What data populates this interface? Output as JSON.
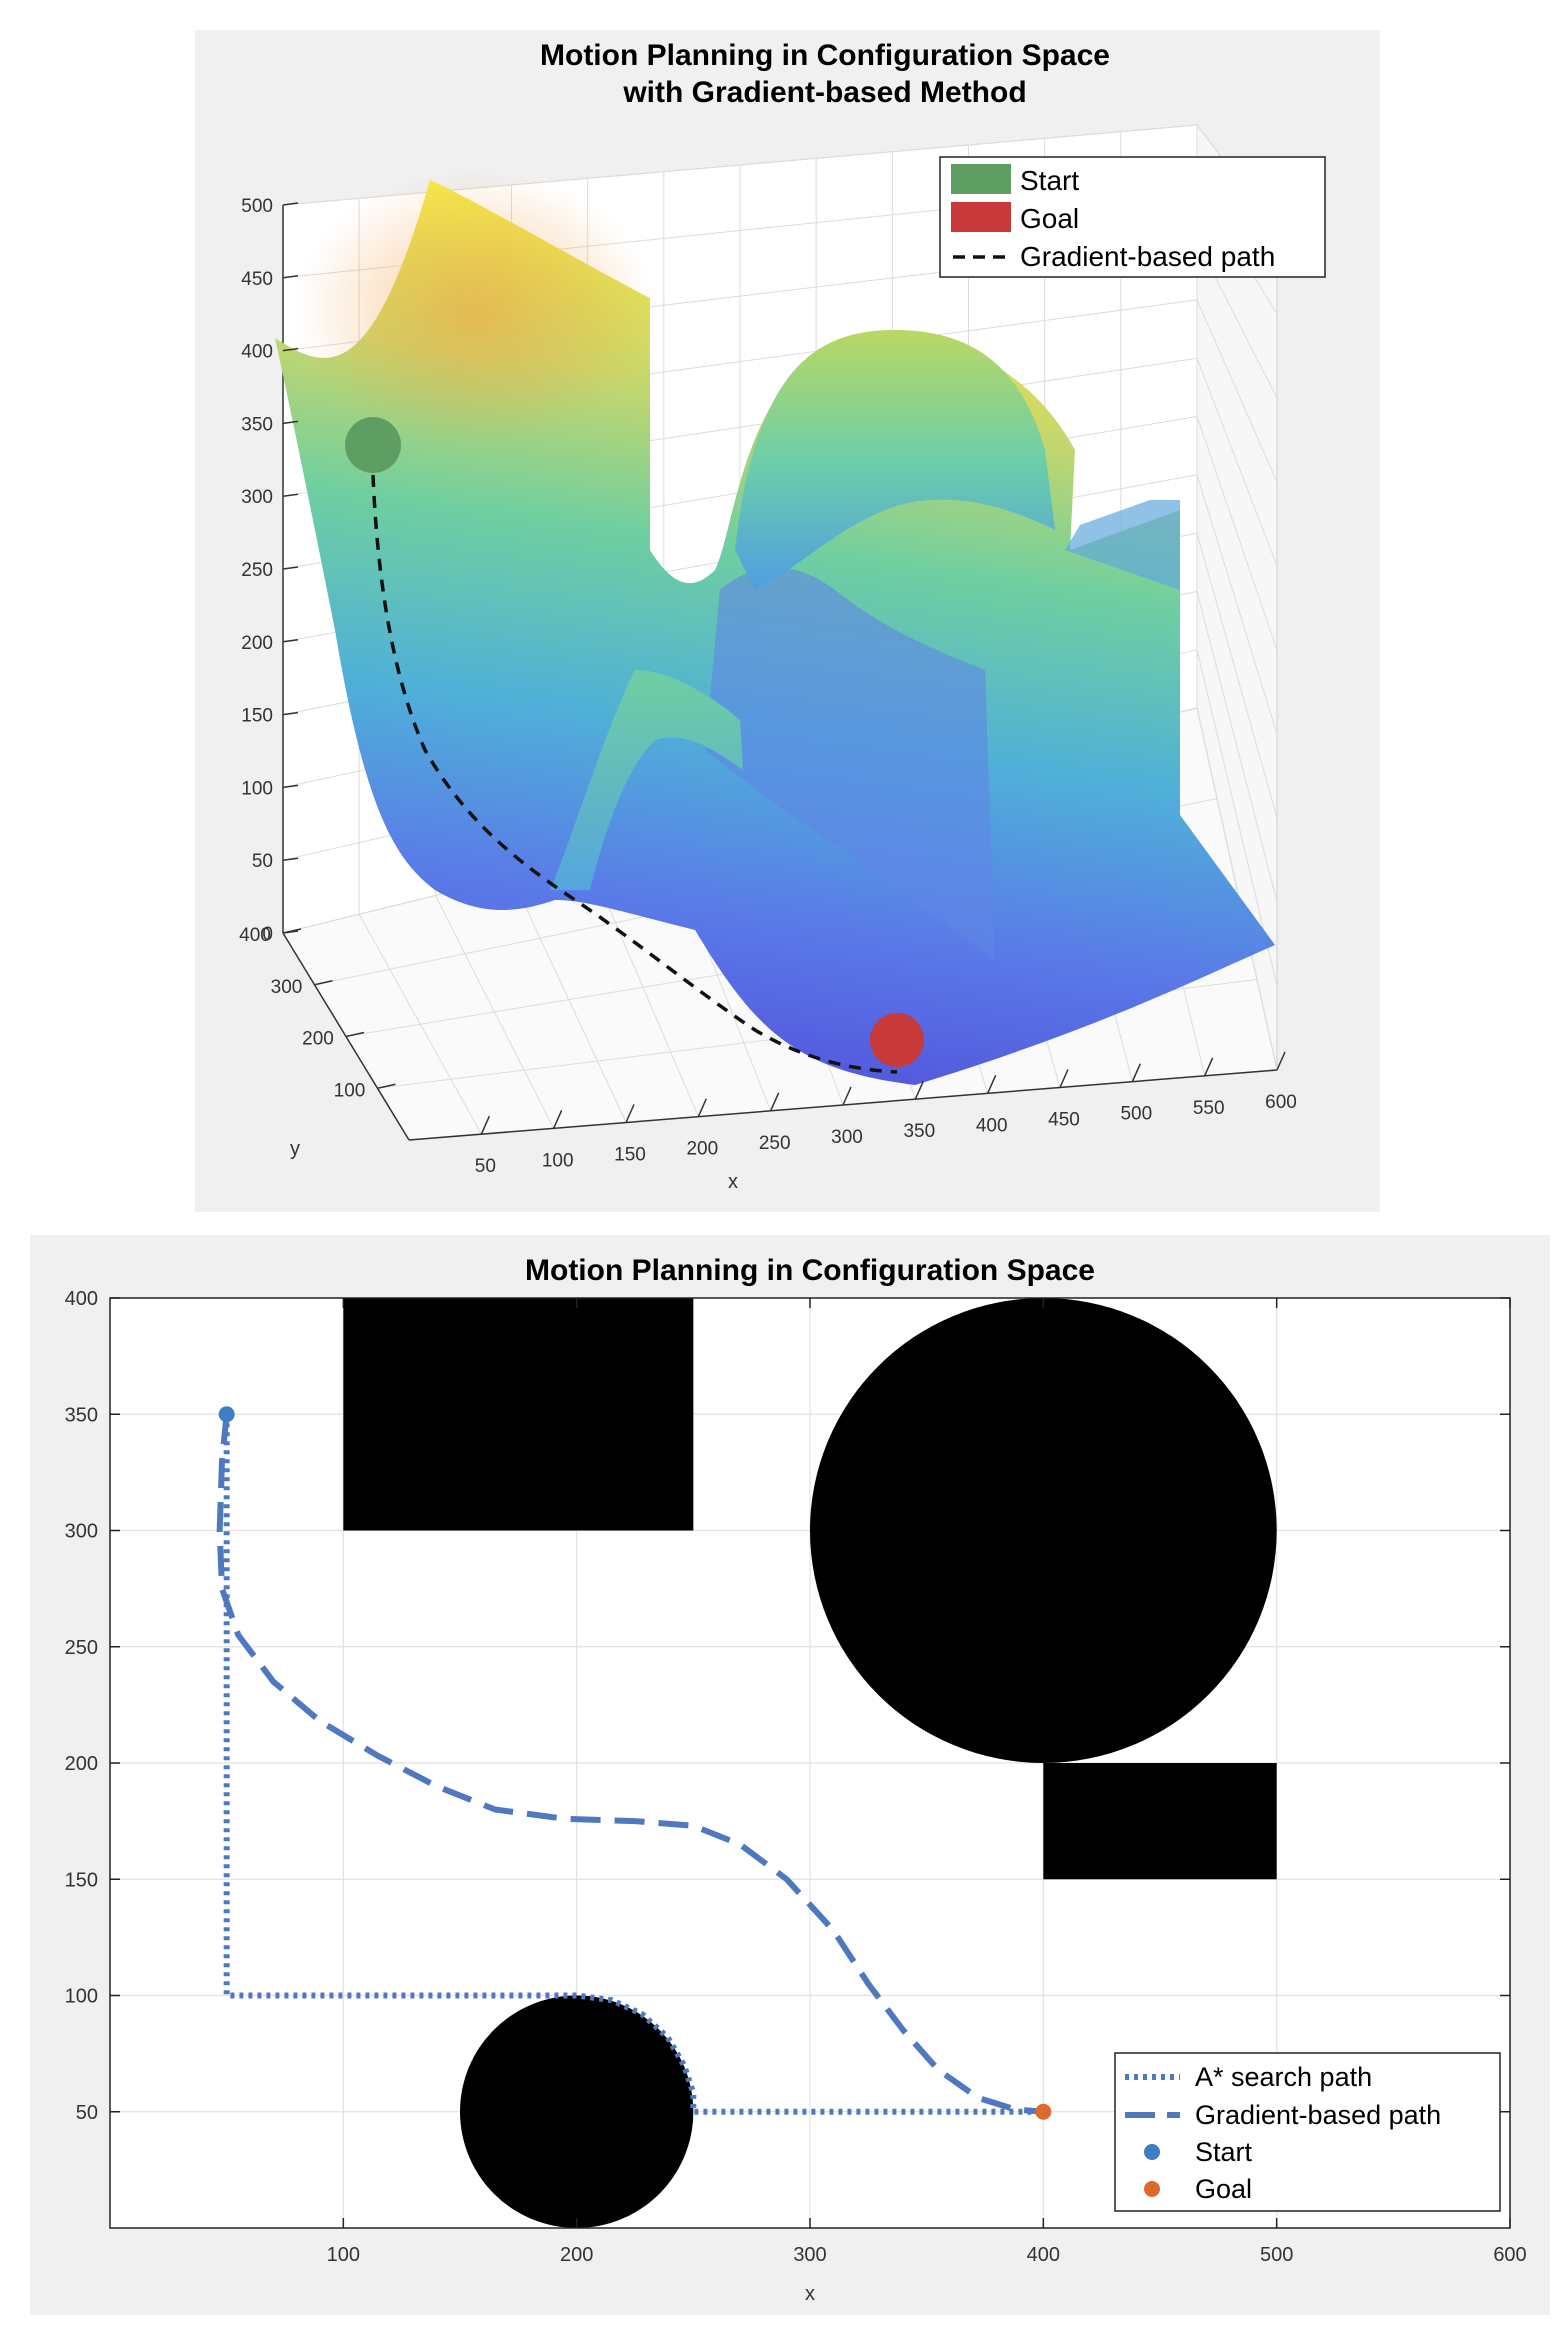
{
  "charts": [
    {
      "title_line1": "Motion Planning in Configuration Space",
      "title_line2": "with Gradient-based Method",
      "xlabel": "x",
      "ylabel": "y",
      "legend": {
        "start": "Start",
        "goal": "Goal",
        "path": "Gradient-based path"
      }
    },
    {
      "title": "Motion Planning in Configuration Space",
      "xlabel": "x",
      "ylabel": "y",
      "legend": {
        "astar": "A* search path",
        "gradient": "Gradient-based path",
        "start": "Start",
        "goal": "Goal"
      }
    }
  ],
  "colors": {
    "start_3d": "#5f9e62",
    "goal_3d": "#c8393a",
    "path_2d": "#4f78c0",
    "start_2d": "#3d7ec4",
    "goal_2d": "#dc6a2a",
    "obstacle": "#000000",
    "surface_high": "#f3e84a",
    "surface_mid": "#6fcfa0",
    "surface_low": "#5a55e0"
  },
  "chart_data": [
    {
      "type": "surface",
      "title": "Motion Planning in Configuration Space with Gradient-based Method",
      "xlabel": "x",
      "ylabel": "y",
      "zlabel": "",
      "xlim": [
        0,
        600
      ],
      "ylim": [
        0,
        400
      ],
      "zlim": [
        0,
        500
      ],
      "x_ticks": [
        50,
        100,
        150,
        200,
        250,
        300,
        350,
        400,
        450,
        500,
        550,
        600
      ],
      "y_ticks": [
        100,
        200,
        300,
        400
      ],
      "z_ticks": [
        0,
        50,
        100,
        150,
        200,
        250,
        300,
        350,
        400,
        450,
        500
      ],
      "grid": true,
      "legend_position": "top-right",
      "series": [
        {
          "name": "Start",
          "points": [
            {
              "x": 50,
              "y": 350,
              "z": 320
            }
          ]
        },
        {
          "name": "Goal",
          "points": [
            {
              "x": 400,
              "y": 50,
              "z": 5
            }
          ]
        },
        {
          "name": "Gradient-based path"
        }
      ]
    },
    {
      "type": "line",
      "title": "Motion Planning in Configuration Space",
      "xlabel": "x",
      "ylabel": "y",
      "xlim": [
        0,
        600
      ],
      "ylim": [
        0,
        400
      ],
      "x_ticks": [
        100,
        200,
        300,
        400,
        500,
        600
      ],
      "y_ticks": [
        50,
        100,
        150,
        200,
        250,
        300,
        350,
        400
      ],
      "grid": true,
      "legend_position": "bottom-right",
      "obstacles": [
        {
          "shape": "rect",
          "x": [
            100,
            250
          ],
          "y": [
            300,
            400
          ]
        },
        {
          "shape": "circle",
          "cx": 400,
          "cy": 300,
          "r": 100
        },
        {
          "shape": "rect",
          "x": [
            400,
            500
          ],
          "y": [
            150,
            200
          ]
        },
        {
          "shape": "circle",
          "cx": 200,
          "cy": 50,
          "r": 50
        }
      ],
      "series": [
        {
          "name": "A* search path",
          "style": "dotted",
          "points": [
            [
              50,
              350
            ],
            [
              50,
              100
            ],
            [
              200,
              100
            ],
            [
              215,
              98
            ],
            [
              228,
              92
            ],
            [
              239,
              82
            ],
            [
              246,
              70
            ],
            [
              250,
              58
            ],
            [
              250,
              50
            ],
            [
              400,
              50
            ]
          ]
        },
        {
          "name": "Gradient-based path",
          "style": "dashed",
          "points": [
            [
              50,
              350
            ],
            [
              48,
              330
            ],
            [
              47,
              300
            ],
            [
              48,
              275
            ],
            [
              55,
              255
            ],
            [
              70,
              235
            ],
            [
              90,
              218
            ],
            [
              115,
              203
            ],
            [
              140,
              190
            ],
            [
              165,
              180
            ],
            [
              195,
              176
            ],
            [
              225,
              175
            ],
            [
              250,
              173
            ],
            [
              270,
              165
            ],
            [
              290,
              150
            ],
            [
              310,
              128
            ],
            [
              325,
              105
            ],
            [
              340,
              85
            ],
            [
              355,
              68
            ],
            [
              372,
              56
            ],
            [
              388,
              51
            ],
            [
              400,
              50
            ]
          ]
        },
        {
          "name": "Start",
          "points": [
            [
              50,
              350
            ]
          ]
        },
        {
          "name": "Goal",
          "points": [
            [
              400,
              50
            ]
          ]
        }
      ]
    }
  ]
}
